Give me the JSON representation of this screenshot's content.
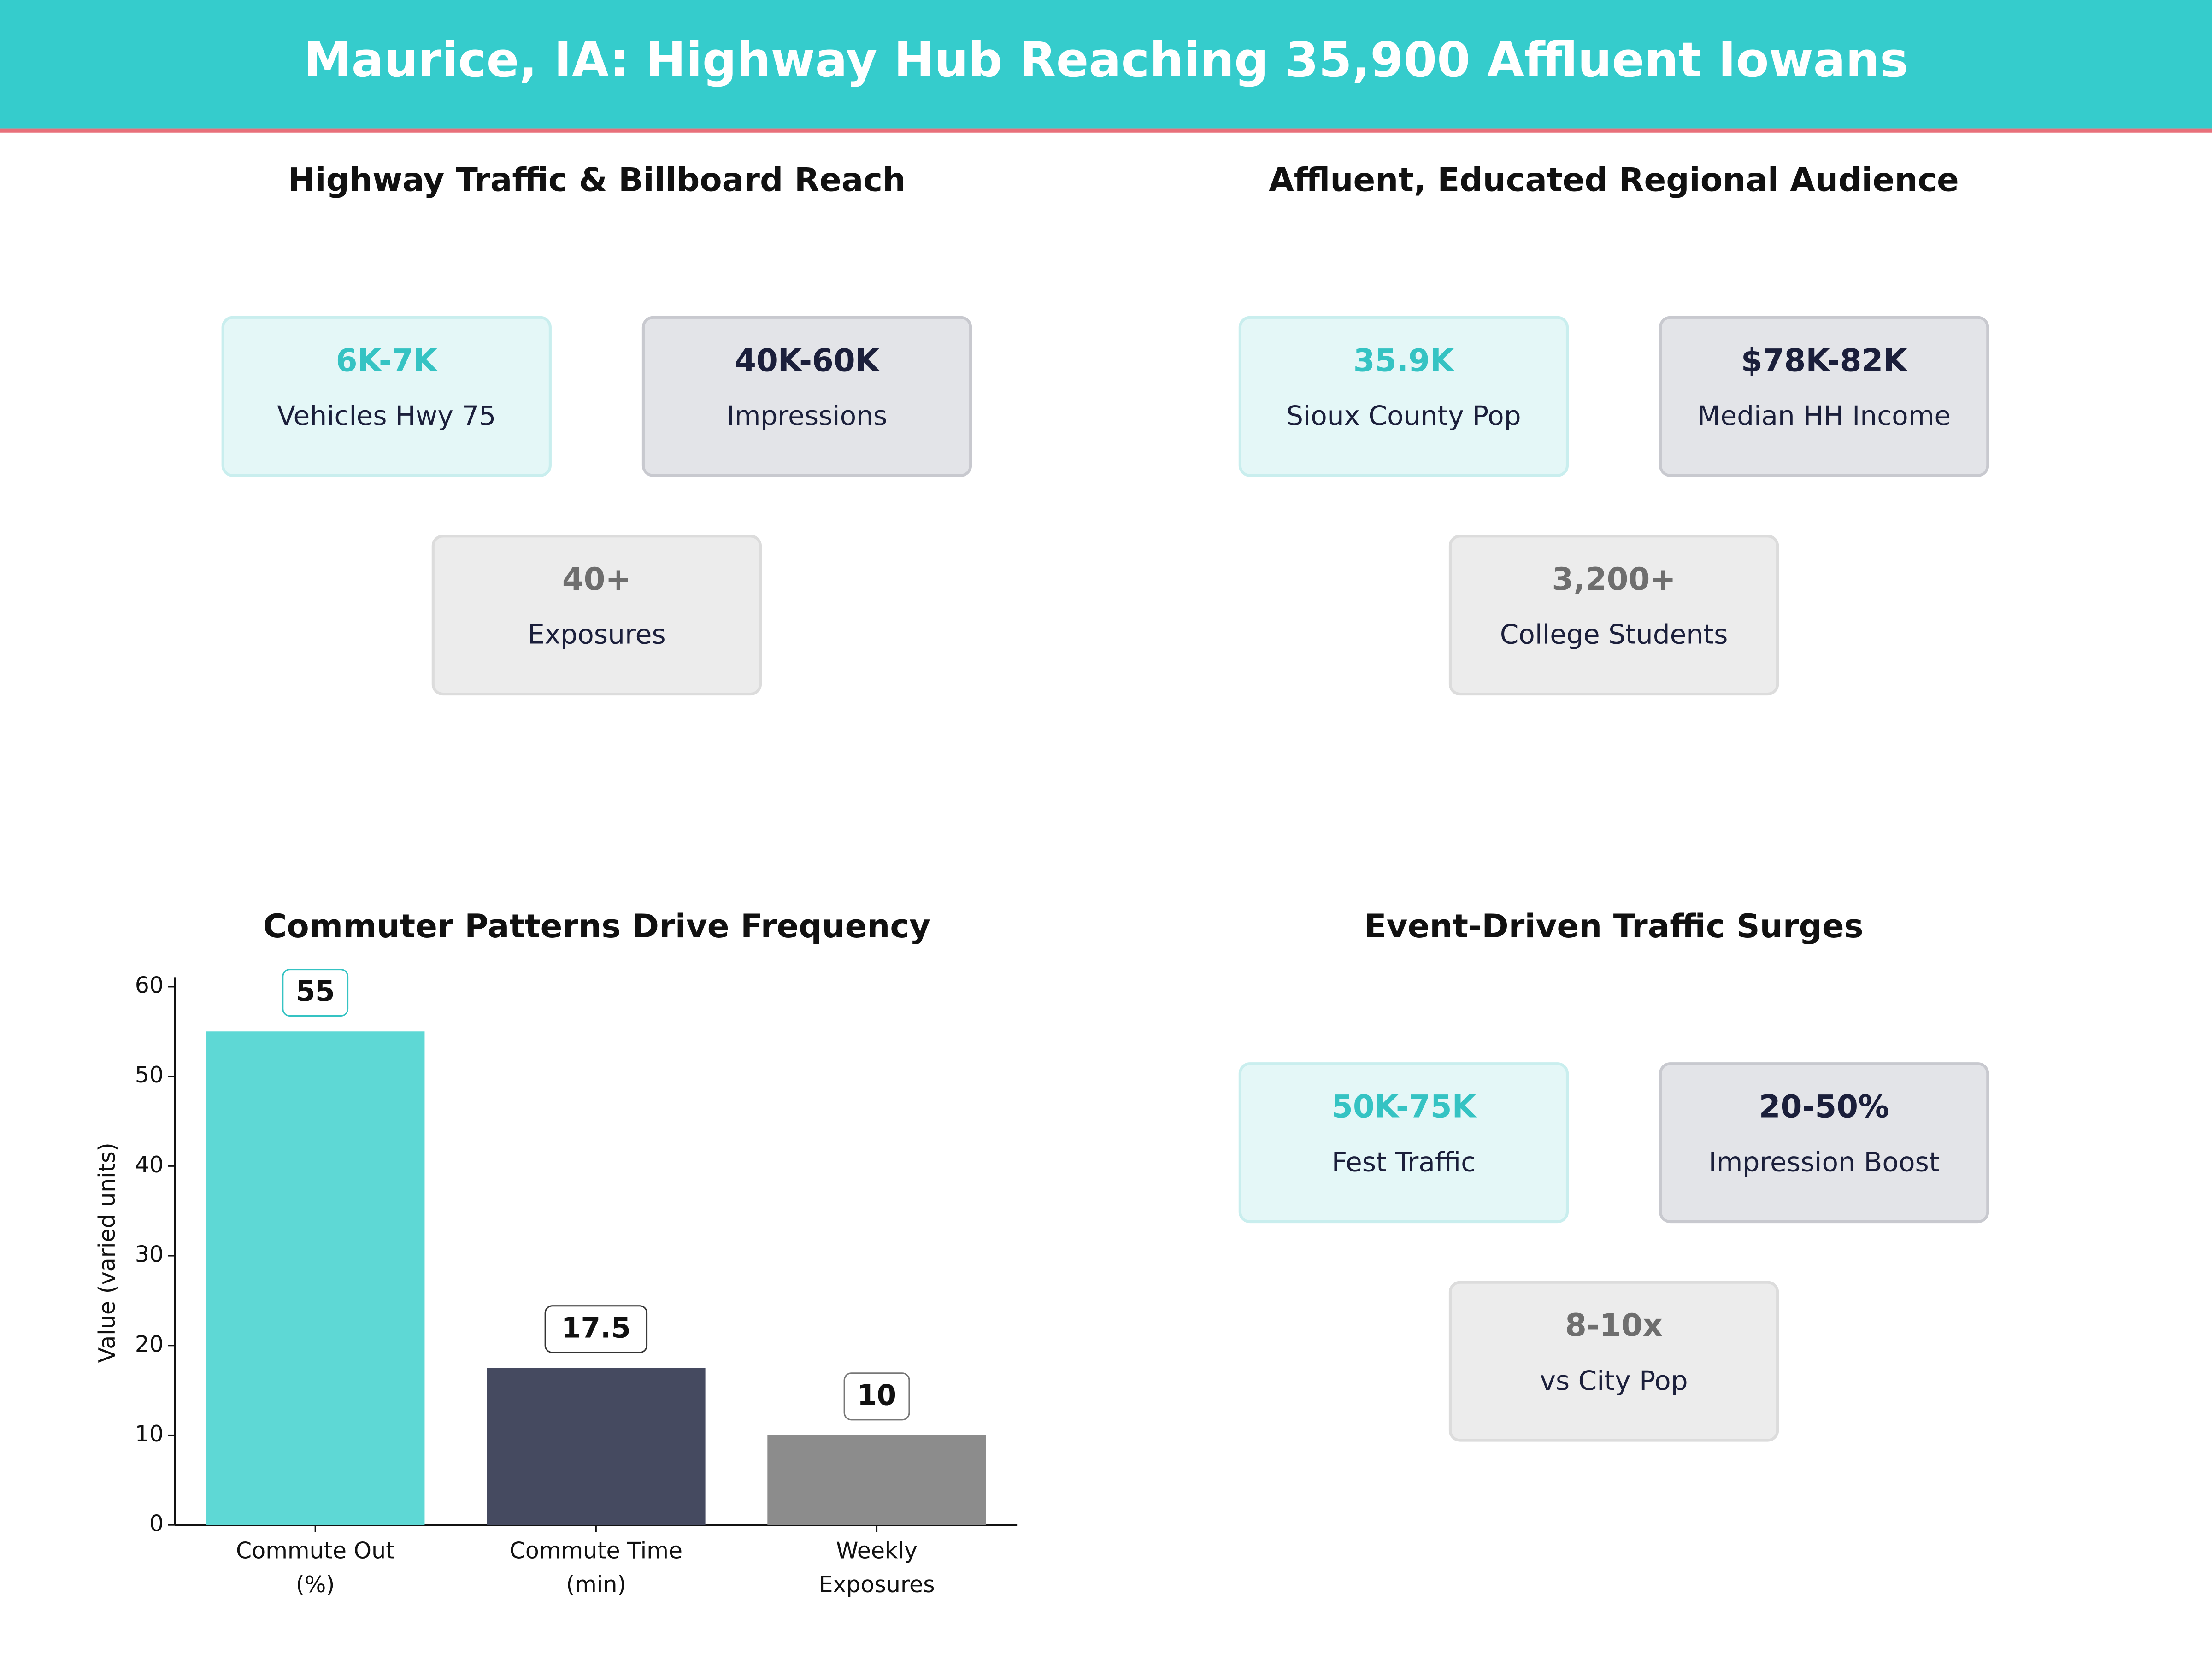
{
  "header": {
    "title": "Maurice, IA: Highway Hub Reaching 35,900 Affluent Iowans"
  },
  "panels": [
    {
      "title": "Highway Traffic & Billboard Reach",
      "cards": [
        {
          "value": "6K-7K",
          "label": "Vehicles Hwy 75"
        },
        {
          "value": "40K-60K",
          "label": "Impressions"
        },
        {
          "value": "40+",
          "label": "Exposures"
        }
      ]
    },
    {
      "title": "Affluent, Educated Regional Audience",
      "cards": [
        {
          "value": "35.9K",
          "label": "Sioux County Pop"
        },
        {
          "value": "$78K-82K",
          "label": "Median HH Income"
        },
        {
          "value": "3,200+",
          "label": "College Students"
        }
      ]
    },
    {
      "title": "Event-Driven Traffic Surges",
      "cards": [
        {
          "value": "50K-75K",
          "label": "Fest Traffic"
        },
        {
          "value": "20-50%",
          "label": "Impression Boost"
        },
        {
          "value": "8-10x",
          "label": "vs City Pop"
        }
      ]
    }
  ],
  "chart_data": {
    "type": "bar",
    "title": "Commuter Patterns Drive Frequency",
    "y_label": "Value (varied units)",
    "categories": [
      "Commute Out\n(%)",
      "Commute Time\n(min)",
      "Weekly\nExposures"
    ],
    "values": [
      55,
      17.5,
      10
    ],
    "colors": [
      "#5ed8d5",
      "#454a60",
      "#8c8c8c"
    ],
    "ylim": [
      0,
      61
    ],
    "yticks": [
      0,
      10,
      20,
      30,
      40,
      50,
      60
    ]
  }
}
